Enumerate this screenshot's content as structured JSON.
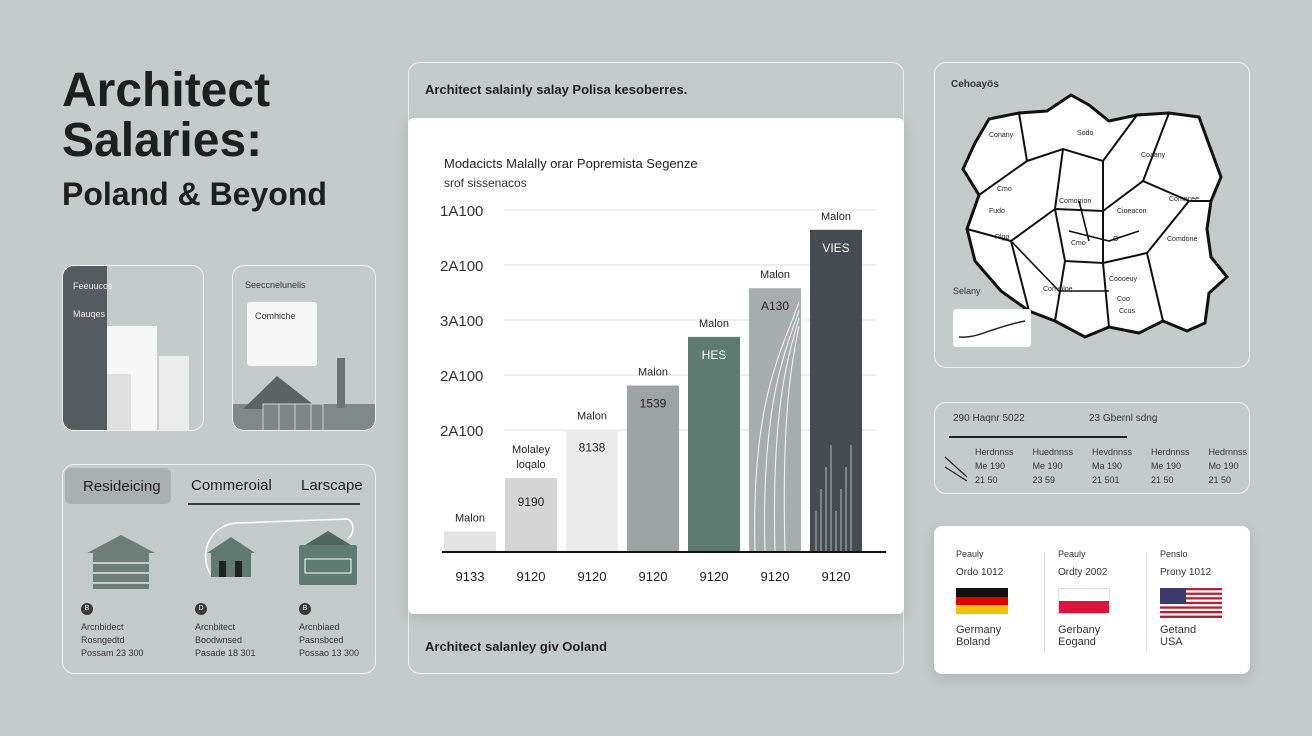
{
  "title": {
    "line1": "Architect",
    "line2": "Salaries:",
    "line3": "Poland & Beyond"
  },
  "thumb1": {
    "label1": "Feeuucos",
    "label2": "Mauqes"
  },
  "thumb2": {
    "label1": "Seeccnelunelis",
    "label2": "Comhiche"
  },
  "specialties": {
    "tabs": [
      "Resideicing",
      "Commeroial",
      "Larscape"
    ],
    "items": [
      {
        "badge": "B",
        "lines": [
          "Arcnbidect",
          "Rosngedtd",
          "Possam 23 300"
        ]
      },
      {
        "badge": "D",
        "lines": [
          "Arcnbitect",
          "Boodwnsed",
          "Pasade 18 301"
        ]
      },
      {
        "badge": "B",
        "lines": [
          "Arcnbiaed",
          "Pasnsbced",
          "Possao 13 300"
        ]
      }
    ]
  },
  "main_panel": {
    "header": "Architect salainly salay Polisa kesoberres.",
    "footer": "Architect salanley giv Ooland"
  },
  "chart_data": {
    "type": "bar",
    "title": "Modacicts Malally orar Popremista Segenze",
    "subtitle": "srof sissenacos",
    "y_tick_labels": [
      "1A100",
      "2A100",
      "3A100",
      "2A100",
      "2A100"
    ],
    "categories": [
      "9133",
      "9120",
      "9120",
      "9120",
      "9120",
      "9120",
      "9120"
    ],
    "values": [
      4,
      15,
      25,
      34,
      44,
      54,
      66
    ],
    "ylim": [
      0,
      75
    ],
    "top_labels": [
      "Malon",
      "Molaley\nloqalo",
      "Malon",
      "Malon",
      "Malon",
      "Malon",
      "Malon"
    ],
    "inner_labels": [
      "",
      "9190",
      "8138",
      "1539",
      "HES",
      "A130",
      "VIES"
    ],
    "colors": [
      "#e3e3e3",
      "#d6d6d6",
      "#ececec",
      "#9ea3a6",
      "#5e7b72",
      "#a8adb0",
      "#454b50"
    ]
  },
  "map": {
    "title": "Cehoayös",
    "regions": [
      "Conany",
      "Sodo",
      "Coaany",
      "Cmo",
      "Comomon",
      "Fudo",
      "Cioeacon",
      "Comncee",
      "Rlgo",
      "Cmo",
      "Comdone",
      "Convoloe",
      "Coooeuy",
      "O",
      "Coo",
      "Ccus"
    ],
    "legend_label": "Selany"
  },
  "table": {
    "header": [
      "290 Haqnr 5022",
      "23 Gbernl sdng"
    ],
    "columns": [
      [
        "Herdnnss",
        "Me 190",
        "21 50"
      ],
      [
        "Huednnss",
        "Me 190",
        "23 59"
      ],
      [
        "Hevdnnss",
        "Ma 190",
        "21 501"
      ],
      [
        "Herdnnss",
        "Me 190",
        "21 50"
      ],
      [
        "Hedrnnss",
        "Mo 190",
        "21 50"
      ]
    ]
  },
  "flags": [
    {
      "label": "Peauly",
      "line": "Ordo 1012",
      "country1": "Germany",
      "country2": "Boland"
    },
    {
      "label": "Peauly",
      "line": "Ordty 2002",
      "country1": "Gerbany",
      "country2": "Eogand"
    },
    {
      "label": "Penslo",
      "line": "Prony 1012",
      "country1": "Getand",
      "country2": "USA"
    }
  ]
}
